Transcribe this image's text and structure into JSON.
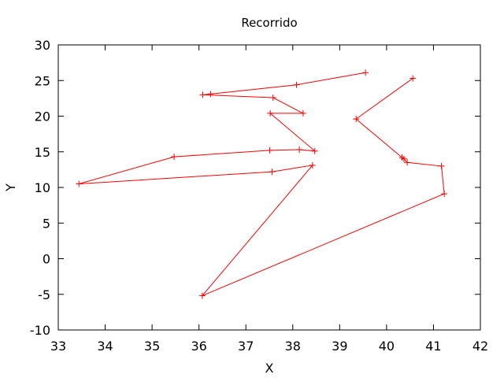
{
  "chart_data": {
    "type": "line",
    "title": "Recorrido",
    "xlabel": "X",
    "ylabel": "Y",
    "xlim": [
      33,
      42
    ],
    "ylim": [
      -10,
      30
    ],
    "xticks": [
      "33",
      "34",
      "35",
      "36",
      "37",
      "38",
      "39",
      "40",
      "41",
      "42"
    ],
    "yticks": [
      "-10",
      "-5",
      "0",
      "5",
      "10",
      "15",
      "20",
      "25",
      "30"
    ],
    "grid": false,
    "legend": "none",
    "series": [
      {
        "color": "#ff0000",
        "marker": "plus",
        "x": [
          39.55,
          38.08,
          36.25,
          36.08,
          37.58,
          38.22,
          37.52,
          38.47,
          38.14,
          37.51,
          35.47,
          33.44,
          37.56,
          38.42,
          36.07,
          41.23,
          41.17,
          40.44,
          40.37,
          40.33,
          39.35,
          40.56
        ],
        "y": [
          26.1,
          24.4,
          23.1,
          23.0,
          22.6,
          20.4,
          20.4,
          15.1,
          15.3,
          15.2,
          14.3,
          10.5,
          12.2,
          13.1,
          -5.2,
          9.1,
          13.0,
          13.5,
          14.0,
          14.2,
          19.6,
          25.3
        ]
      }
    ]
  }
}
